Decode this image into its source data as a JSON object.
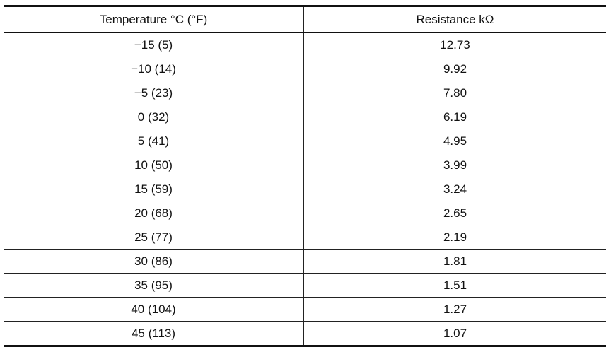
{
  "table": {
    "header": [
      "Temperature °C (°F)",
      "Resistance kΩ"
    ],
    "rows": [
      [
        "−15 (5)",
        "12.73"
      ],
      [
        "−10 (14)",
        "9.92"
      ],
      [
        "−5 (23)",
        "7.80"
      ],
      [
        "0 (32)",
        "6.19"
      ],
      [
        "5 (41)",
        "4.95"
      ],
      [
        "10 (50)",
        "3.99"
      ],
      [
        "15 (59)",
        "3.24"
      ],
      [
        "20 (68)",
        "2.65"
      ],
      [
        "25 (77)",
        "2.19"
      ],
      [
        "30 (86)",
        "1.81"
      ],
      [
        "35 (95)",
        "1.51"
      ],
      [
        "40 (104)",
        "1.27"
      ],
      [
        "45 (113)",
        "1.07"
      ]
    ]
  }
}
